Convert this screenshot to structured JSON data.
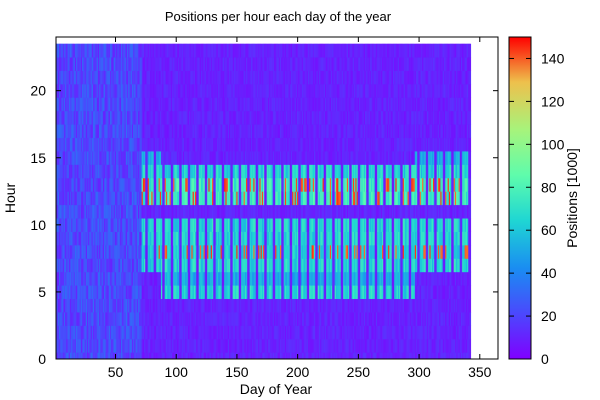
{
  "chart_data": {
    "type": "heatmap",
    "title": "Positions per hour each day of the year",
    "xlabel": "Day of Year",
    "ylabel": "Hour",
    "xlim": [
      1,
      365
    ],
    "ylim": [
      0,
      24
    ],
    "x_ticks": [
      50,
      100,
      150,
      200,
      250,
      300,
      350
    ],
    "y_ticks": [
      0,
      5,
      10,
      15,
      20
    ],
    "data_day_range": [
      1,
      342
    ],
    "colorbar": {
      "label": "Positions [1000]",
      "range": [
        0,
        150
      ],
      "ticks": [
        0,
        20,
        40,
        60,
        80,
        100,
        120,
        140
      ],
      "colormap": "rainbow"
    },
    "description_values": {
      "weekday_work_hours_typical": 70,
      "weekday_peak_hours": [
        8,
        12,
        13
      ],
      "peak_value": 140,
      "weekend_value": 10,
      "night_value": 10,
      "early_period_end_day": 72
    }
  }
}
